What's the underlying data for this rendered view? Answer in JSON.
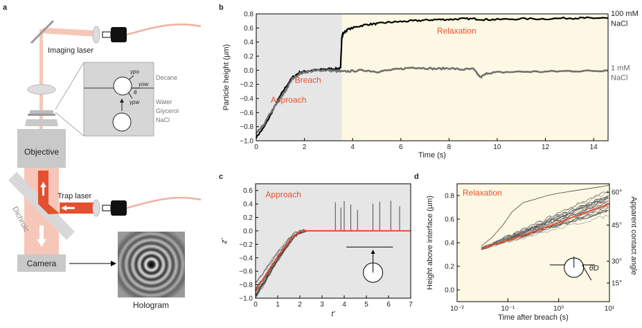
{
  "panel_a": {
    "letter": "a",
    "imaging_laser": "Imaging laser",
    "trap_laser": "Trap laser",
    "objective": "Objective",
    "dichroic": "Dichroic",
    "camera": "Camera",
    "hologram": "Hologram",
    "inset": {
      "decane": "Decane",
      "water": "Water",
      "glycerol": "Glycerol",
      "nacl": "NaCl",
      "gamma_po": "γpo",
      "gamma_ow": "γow",
      "gamma_pw": "γpw",
      "theta": "θ"
    },
    "colors": {
      "laser": "#e4502f",
      "beam": "#f6c7b8",
      "gray_box": "#c9c9c9",
      "inset_bg": "#d6d6d6"
    }
  },
  "chart_data": [
    {
      "panel": "b",
      "type": "line",
      "xlabel": "Time (s)",
      "ylabel": "Particle height (µm)",
      "xlim": [
        0,
        14.6
      ],
      "ylim": [
        -1.0,
        0.8
      ],
      "xticks": [
        "0",
        "2",
        "4",
        "6",
        "8",
        "10",
        "12",
        "14"
      ],
      "yticks": [
        "−1.0",
        "−0.8",
        "−0.6",
        "−0.4",
        "−0.2",
        "0.0",
        "0.2",
        "0.4",
        "0.6",
        "0.8"
      ],
      "regions": [
        {
          "label": "Approach",
          "x": [
            0,
            3.55
          ],
          "color": "#e6e6e6"
        },
        {
          "label": "Relaxation",
          "x": [
            3.55,
            14.6
          ],
          "color": "#fdf8e4"
        }
      ],
      "annotations": [
        "Approach",
        "Breach",
        "Relaxation"
      ],
      "series": [
        {
          "name": "100 mM NaCl",
          "name_line1": "100 mM",
          "name_line2": "NaCl",
          "color": "#000000",
          "x": [
            0,
            0.3,
            0.6,
            0.9,
            1.2,
            1.5,
            1.8,
            2.1,
            2.4,
            2.7,
            3.0,
            3.3,
            3.5,
            3.55,
            3.6,
            3.8,
            4.2,
            4.6,
            5.0,
            5.5,
            6.0,
            6.5,
            7.0,
            7.5,
            8.0,
            8.5,
            9.0,
            9.5,
            10.0,
            11.0,
            12.0,
            13.0,
            13.5,
            14.0,
            14.6
          ],
          "y": [
            -0.95,
            -0.82,
            -0.63,
            -0.42,
            -0.25,
            -0.1,
            -0.03,
            -0.01,
            0.0,
            0.01,
            0.02,
            0.02,
            0.03,
            0.47,
            0.52,
            0.58,
            0.62,
            0.65,
            0.66,
            0.68,
            0.69,
            0.7,
            0.71,
            0.72,
            0.72,
            0.73,
            0.73,
            0.72,
            0.72,
            0.73,
            0.73,
            0.74,
            0.74,
            0.74,
            0.74
          ]
        },
        {
          "name": "1 mM NaCl",
          "name_line1": "1 mM",
          "name_line2": "NaCl",
          "color": "#707070",
          "x": [
            0,
            0.3,
            0.6,
            0.9,
            1.2,
            1.5,
            1.8,
            2.1,
            2.4,
            2.7,
            3.0,
            3.3,
            3.6,
            4.0,
            4.5,
            5.0,
            5.5,
            6.0,
            6.5,
            7.0,
            7.5,
            8.0,
            8.5,
            9.0,
            9.3,
            9.6,
            10.0,
            11.0,
            12.0,
            13.0,
            14.0,
            14.6
          ],
          "y": [
            -0.9,
            -0.78,
            -0.6,
            -0.45,
            -0.3,
            -0.12,
            -0.05,
            -0.02,
            -0.01,
            0.0,
            0.0,
            -0.01,
            -0.02,
            -0.01,
            0.0,
            -0.02,
            0.0,
            0.02,
            0.04,
            0.03,
            0.02,
            0.03,
            0.01,
            0.02,
            -0.1,
            -0.04,
            -0.03,
            -0.02,
            -0.02,
            -0.01,
            -0.01,
            0.0
          ]
        }
      ]
    },
    {
      "panel": "c",
      "type": "line",
      "xlabel": "t'",
      "ylabel": "z'",
      "xlim": [
        0,
        7
      ],
      "ylim": [
        -1.0,
        0.7
      ],
      "xticks": [
        "0",
        "1",
        "2",
        "3",
        "4",
        "5",
        "6",
        "7"
      ],
      "yticks": [
        "−1.0",
        "−0.8",
        "−0.6",
        "−0.4",
        "−0.2",
        "0.0",
        "0.2",
        "0.4",
        "0.6"
      ],
      "annotations": [
        "Approach"
      ],
      "spike_times": [
        3.6,
        3.85,
        4.0,
        4.3,
        4.6,
        5.3,
        5.6,
        6.1,
        6.5
      ],
      "fit": {
        "color": "#e4502f",
        "x": [
          0,
          0.25,
          0.5,
          0.75,
          1.0,
          1.25,
          1.5,
          1.75,
          2.0,
          2.25,
          2.5,
          3,
          7
        ],
        "y": [
          -0.88,
          -0.76,
          -0.63,
          -0.5,
          -0.38,
          -0.27,
          -0.16,
          -0.07,
          -0.01,
          0,
          0,
          0,
          0
        ]
      }
    },
    {
      "panel": "d",
      "type": "line",
      "xlabel": "Time after breach (s)",
      "ylabel": "Height above interface (µm)",
      "y2label": "Apparent contact angle",
      "xscale": "log",
      "xlim": [
        0.01,
        10
      ],
      "ylim": [
        -0.1,
        0.9
      ],
      "xticks": [
        "10⁻²",
        "10⁻¹",
        "10⁰",
        "10¹"
      ],
      "yticks": [
        "0.0",
        "0.2",
        "0.4",
        "0.6",
        "0.8"
      ],
      "y2ticks": [
        "15°",
        "30°",
        "45°",
        "60°"
      ],
      "annotations": [
        "Relaxation",
        "θD"
      ],
      "fit": {
        "color": "#e4502f",
        "x": [
          0.03,
          0.1,
          0.3,
          1,
          3,
          10
        ],
        "y": [
          0.35,
          0.42,
          0.49,
          0.57,
          0.65,
          0.73
        ]
      }
    }
  ]
}
